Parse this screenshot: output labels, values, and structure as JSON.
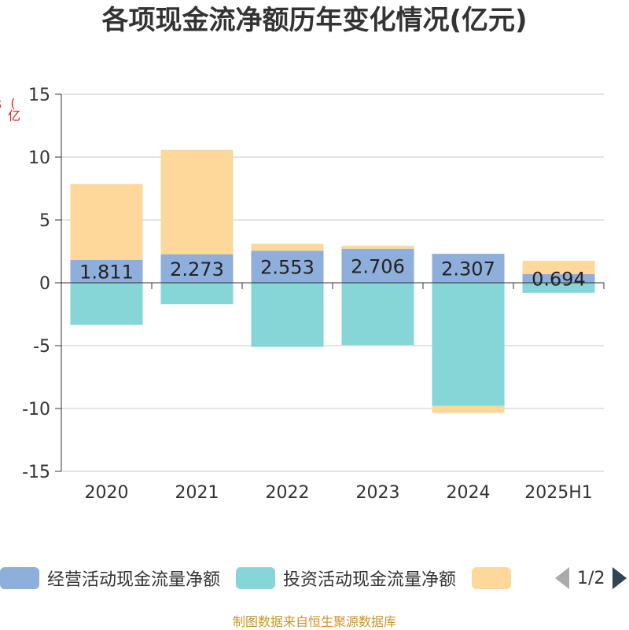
{
  "chart_data": {
    "type": "bar",
    "stacked": true,
    "title": "各项现金流净额历年变化情况(亿元)",
    "unit_label": "(亿元)",
    "categories": [
      "2020",
      "2021",
      "2022",
      "2023",
      "2024",
      "2025H1"
    ],
    "ylim": [
      -15,
      15
    ],
    "yticks": [
      15,
      10,
      5,
      0,
      -5,
      -10,
      -15
    ],
    "grid": true,
    "legend_position": "bottom",
    "series": [
      {
        "name": "经营活动现金流量净额",
        "color": "#8eaedb",
        "values": [
          1.811,
          2.273,
          2.553,
          2.706,
          2.307,
          0.694
        ],
        "labels": [
          "1.811",
          "2.273",
          "2.553",
          "2.706",
          "2.307",
          "0.694"
        ]
      },
      {
        "name": "投资活动现金流量净额",
        "color": "#86d6d8",
        "values": [
          -3.35,
          -1.7,
          -5.1,
          -4.95,
          -9.8,
          -0.8
        ]
      },
      {
        "name": "",
        "color": "#fdd89a",
        "values": [
          6.05,
          8.3,
          0.55,
          0.25,
          -0.55,
          1.05
        ]
      }
    ]
  },
  "legend": {
    "items": [
      {
        "label": "经营活动现金流量净额",
        "color": "#8eaedb"
      },
      {
        "label": "投资活动现金流量净额",
        "color": "#86d6d8"
      },
      {
        "label": "",
        "color": "#fdd89a"
      }
    ],
    "page": "1/2"
  },
  "source": "制图数据来自恒生聚源数据库"
}
